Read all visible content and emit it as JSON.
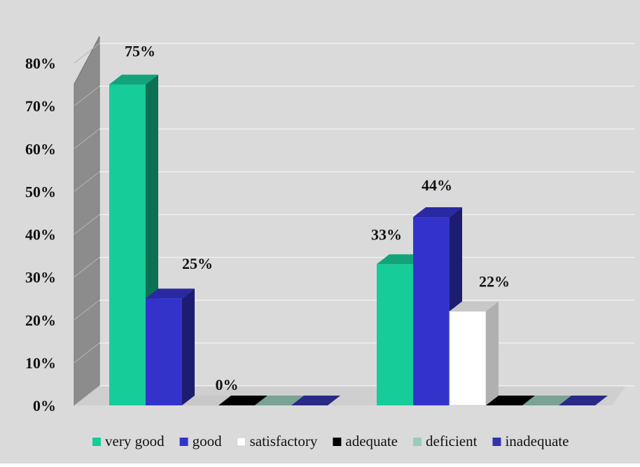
{
  "chart_data": {
    "type": "bar",
    "categories": [
      "",
      ""
    ],
    "series": [
      {
        "name": "very good",
        "values": [
          75,
          33
        ],
        "color": "#16cc99"
      },
      {
        "name": "good",
        "values": [
          25,
          44
        ],
        "color": "#3333cc"
      },
      {
        "name": "satisfactory",
        "values": [
          0,
          22
        ],
        "color": "#ffffff"
      },
      {
        "name": "adequate",
        "values": [
          0,
          0
        ],
        "color": "#000000"
      },
      {
        "name": "deficient",
        "values": [
          0,
          0
        ],
        "color": "#99ccb8"
      },
      {
        "name": "inadequate",
        "values": [
          0,
          0
        ],
        "color": "#3333aa"
      }
    ],
    "data_labels": [
      {
        "category_index": 0,
        "series_index": 0,
        "text": "75%"
      },
      {
        "category_index": 0,
        "series_index": 1,
        "text": "25%"
      },
      {
        "category_index": 0,
        "series_index": 2,
        "text": "0%"
      },
      {
        "category_index": 1,
        "series_index": 0,
        "text": "33%"
      },
      {
        "category_index": 1,
        "series_index": 1,
        "text": "44%"
      },
      {
        "category_index": 1,
        "series_index": 2,
        "text": "22%"
      }
    ],
    "ylim": [
      0,
      80
    ],
    "yticks": [
      0,
      10,
      20,
      30,
      40,
      50,
      60,
      70,
      80
    ],
    "ytick_labels": [
      "0%",
      "10%",
      "20%",
      "30%",
      "40%",
      "50%",
      "60%",
      "70%",
      "80%"
    ],
    "grid": true,
    "legend_position": "bottom",
    "title": "",
    "xlabel": "",
    "ylabel": "",
    "style": "3d-clustered-column",
    "background_color": "#dadada",
    "wall_color": "#8c8c8c"
  }
}
